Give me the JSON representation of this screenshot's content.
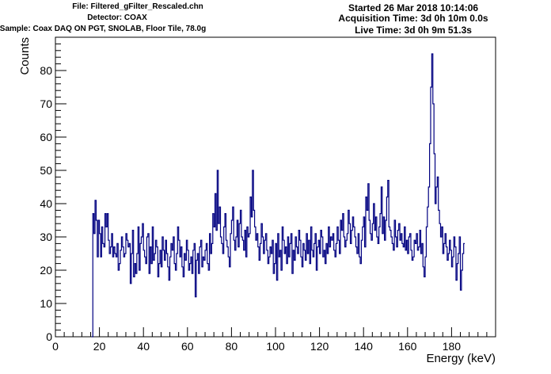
{
  "header": {
    "file": "File: Filtered_gFilter_Rescaled.chn",
    "detector": "Detector: COAX",
    "sample": "Sample: Coax DAQ ON PGT, SNOLAB, Floor Tile, 78.0g",
    "started": "Started 26 Mar 2018 10:14:06",
    "acquisition_time": "Acquisition Time: 3d 0h 10m 0.0s",
    "live_time": "Live Time: 3d 0h 9m 51.3s"
  },
  "chart_data": {
    "type": "line",
    "xlabel": "Energy (keV)",
    "ylabel": "Counts",
    "xlim": [
      0,
      200
    ],
    "ylim": [
      0,
      90
    ],
    "x_ticks": [
      0,
      20,
      40,
      60,
      80,
      100,
      120,
      140,
      160,
      180
    ],
    "y_ticks": [
      0,
      10,
      20,
      30,
      40,
      50,
      60,
      70,
      80
    ],
    "grid": false,
    "line_color": "#000080",
    "bin_width_keV": 0.5,
    "series": [
      {
        "x_start_keV": 16.5,
        "values": [
          0,
          37,
          31,
          41,
          35,
          24,
          35,
          31,
          24,
          33,
          28,
          27,
          37,
          33,
          37,
          29,
          25,
          27,
          31,
          24,
          27,
          25,
          24,
          28,
          20,
          22,
          26,
          30,
          27,
          24,
          25,
          31,
          29,
          27,
          28,
          16,
          25,
          32,
          18,
          22,
          19,
          25,
          33,
          20,
          28,
          30,
          34,
          26,
          24,
          22,
          30,
          31,
          19,
          27,
          22,
          33,
          23,
          25,
          29,
          27,
          18,
          22,
          26,
          21,
          30,
          26,
          23,
          29,
          25,
          21,
          17,
          24,
          28,
          26,
          30,
          22,
          20,
          25,
          33,
          29,
          24,
          27,
          21,
          18,
          25,
          23,
          29,
          26,
          20,
          22,
          24,
          19,
          26,
          28,
          12,
          23,
          25,
          19,
          27,
          29,
          21,
          24,
          23,
          26,
          28,
          22,
          20,
          31,
          25,
          28,
          37,
          33,
          43,
          32,
          50,
          34,
          39,
          30,
          28,
          25,
          33,
          37,
          29,
          27,
          24,
          21,
          31,
          35,
          39,
          29,
          26,
          30,
          35,
          27,
          34,
          38,
          30,
          29,
          26,
          32,
          24,
          33,
          30,
          31,
          42,
          36,
          50,
          38,
          33,
          29,
          31,
          27,
          23,
          28,
          34,
          30,
          25,
          29,
          31,
          26,
          22,
          24,
          27,
          25,
          29,
          19,
          22,
          28,
          17,
          31,
          24,
          26,
          20,
          33,
          29,
          25,
          27,
          22,
          30,
          24,
          28,
          31,
          19,
          26,
          23,
          30,
          27,
          25,
          32,
          29,
          24,
          21,
          28,
          26,
          23,
          31,
          25,
          29,
          22,
          33,
          26,
          24,
          28,
          31,
          20,
          27,
          29,
          25,
          32,
          30,
          24,
          26,
          22,
          28,
          25,
          33,
          27,
          30,
          29,
          31,
          26,
          24,
          28,
          33,
          29,
          25,
          35,
          32,
          37,
          30,
          27,
          29,
          31,
          38,
          34,
          28,
          32,
          36,
          33,
          30,
          27,
          25,
          31,
          24,
          22,
          29,
          33,
          36,
          27,
          42,
          38,
          46,
          35,
          31,
          29,
          34,
          40,
          32,
          36,
          30,
          28,
          33,
          37,
          45,
          31,
          36,
          29,
          35,
          42,
          47,
          33,
          32,
          30,
          28,
          26,
          35,
          30,
          27,
          32,
          34,
          29,
          31,
          28,
          27,
          33,
          26,
          29,
          25,
          30,
          31,
          26,
          23,
          24,
          29,
          28,
          31,
          26,
          27,
          32,
          25,
          28,
          21,
          18,
          24,
          33,
          39,
          45,
          58,
          75,
          85,
          70,
          55,
          40,
          45,
          48,
          38,
          34,
          30,
          33,
          25,
          28,
          31,
          27,
          23,
          25,
          29,
          26,
          21,
          24,
          30,
          27,
          17,
          22,
          25,
          30,
          14,
          20,
          25,
          28
        ]
      }
    ]
  }
}
